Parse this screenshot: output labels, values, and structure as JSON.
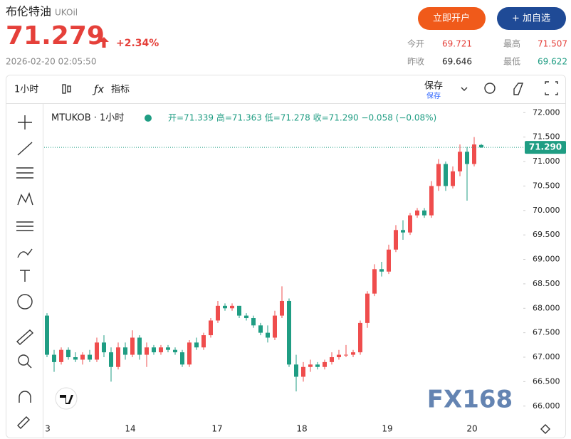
{
  "header": {
    "name": "布伦特油",
    "symbol": "UKOil",
    "price": "71.279",
    "change": "+2.34%",
    "timestamp": "2026-02-20 02:05:50",
    "buttons": [
      "立即开户",
      "+ 加自选"
    ],
    "stats": [
      {
        "label": "今开",
        "value": "69.721"
      },
      {
        "label": "最高",
        "value": "71.507"
      },
      {
        "label": "昨收",
        "value": "69.646"
      },
      {
        "label": "最低",
        "value": "69.622"
      }
    ]
  },
  "toolbar": {
    "interval": "1小时",
    "indicators": "指标",
    "save": "保存",
    "save_sub": "保存"
  },
  "chart_data": {
    "type": "candlestick",
    "title": "MTUKOB · 1小时",
    "ohlc_text": "开=71.339 高=71.363 低=71.278 收=71.290 −0.058 (−0.08%)",
    "watermark": "FX168",
    "up_color": "#ef4d4d",
    "down_color": "#1f9d83",
    "ylim": [
      65.72,
      72.15
    ],
    "yticks": [
      {
        "value": 66,
        "label": "66.000"
      },
      {
        "value": 66.5,
        "label": "66.500"
      },
      {
        "value": 67,
        "label": "67.000"
      },
      {
        "value": 67.5,
        "label": "67.500"
      },
      {
        "value": 68,
        "label": "68.000"
      },
      {
        "value": 68.5,
        "label": "68.500"
      },
      {
        "value": 69,
        "label": "69.000"
      },
      {
        "value": 69.5,
        "label": "69.500"
      },
      {
        "value": 70,
        "label": "70.000"
      },
      {
        "value": 70.5,
        "label": "70.500"
      },
      {
        "value": 71,
        "label": "71.000"
      },
      {
        "value": 71.5,
        "label": "71.500"
      },
      {
        "value": 72,
        "label": "72.000"
      }
    ],
    "x_labels": [
      "3",
      "14",
      "17",
      "18",
      "19",
      "20"
    ],
    "last_price": {
      "value": 71.29,
      "label": "71.290"
    },
    "open": [
      67.85,
      67.05,
      66.9,
      67.15,
      67.0,
      66.95,
      67.05,
      66.95,
      67.3,
      67.1,
      66.8,
      67.2,
      67.05,
      67.4,
      67.05,
      67.2,
      67.1,
      67.2,
      67.15,
      67.1,
      66.85,
      67.3,
      67.2,
      67.45,
      67.75,
      68.05,
      68.0,
      68.05,
      67.85,
      67.8,
      67.65,
      67.5,
      67.4,
      67.85,
      68.15,
      66.85,
      66.6,
      66.8,
      66.85,
      66.8,
      66.9,
      67.0,
      67.05,
      67.05,
      67.1,
      67.7,
      68.3,
      68.8,
      68.75,
      69.2,
      69.6,
      69.55,
      69.9,
      70.0,
      69.9,
      70.5,
      70.95,
      70.5,
      70.8,
      71.2,
      70.95,
      71.339
    ],
    "high": [
      67.9,
      67.15,
      67.2,
      67.2,
      67.1,
      67.1,
      67.15,
      67.4,
      67.45,
      67.2,
      67.3,
      67.3,
      67.55,
      67.45,
      67.3,
      67.25,
      67.25,
      67.25,
      67.2,
      67.15,
      67.35,
      67.4,
      67.5,
      67.8,
      68.15,
      68.1,
      68.1,
      68.05,
      67.9,
      67.85,
      67.7,
      67.65,
      67.95,
      68.45,
      68.2,
      67.05,
      66.9,
      66.95,
      66.9,
      66.95,
      67.1,
      67.15,
      67.25,
      67.15,
      67.75,
      68.35,
      68.9,
      68.95,
      69.3,
      69.7,
      69.8,
      69.95,
      70.05,
      70.05,
      70.6,
      71.05,
      71.0,
      70.9,
      71.35,
      71.3,
      71.5,
      71.363
    ],
    "low": [
      67.0,
      66.7,
      66.85,
      66.95,
      66.9,
      66.85,
      66.9,
      66.9,
      67.0,
      66.5,
      66.75,
      66.95,
      67.0,
      66.95,
      66.8,
      67.05,
      67.05,
      67.1,
      67.05,
      66.8,
      66.8,
      67.15,
      67.15,
      67.4,
      67.7,
      67.95,
      67.95,
      67.8,
      67.75,
      67.6,
      67.45,
      67.3,
      67.35,
      67.8,
      66.8,
      66.3,
      66.5,
      66.7,
      66.75,
      66.75,
      66.85,
      66.95,
      67.0,
      67.0,
      67.05,
      67.6,
      68.25,
      68.65,
      68.7,
      69.15,
      69.4,
      69.5,
      69.85,
      69.85,
      69.85,
      70.4,
      70.4,
      70.45,
      70.7,
      70.2,
      70.9,
      71.278
    ],
    "close": [
      67.05,
      66.9,
      67.15,
      67.0,
      66.95,
      67.05,
      66.95,
      67.3,
      67.1,
      66.8,
      67.2,
      67.05,
      67.4,
      67.05,
      67.2,
      67.1,
      67.2,
      67.15,
      67.1,
      66.85,
      67.3,
      67.2,
      67.45,
      67.75,
      68.05,
      68.0,
      68.05,
      67.85,
      67.8,
      67.65,
      67.5,
      67.4,
      67.85,
      68.15,
      66.85,
      66.6,
      66.8,
      66.85,
      66.8,
      66.9,
      67.0,
      67.05,
      67.05,
      67.1,
      67.7,
      68.3,
      68.8,
      68.75,
      69.2,
      69.6,
      69.55,
      69.9,
      70.0,
      69.9,
      70.5,
      70.95,
      70.5,
      70.8,
      71.2,
      70.95,
      71.35,
      71.29
    ]
  }
}
